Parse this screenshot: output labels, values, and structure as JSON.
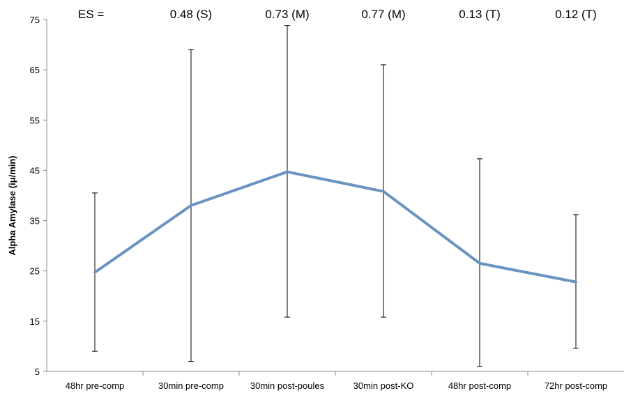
{
  "chart_data": {
    "type": "line",
    "ylabel": "Alpha Amylase (iμ/min)",
    "xlabel": "",
    "ylim": [
      5,
      75
    ],
    "yticks": [
      5,
      15,
      25,
      35,
      45,
      55,
      65,
      75
    ],
    "grid": false,
    "categories": [
      "48hr pre-comp",
      "30min pre-comp",
      "30min post-poules",
      "30min post-KO",
      "48hr post-comp",
      "72hr post-comp"
    ],
    "series": [
      {
        "values": [
          24.7,
          38.0,
          44.7,
          40.8,
          26.5,
          22.8
        ],
        "error_upper": [
          40.5,
          69.0,
          73.8,
          66.0,
          47.3,
          36.2
        ],
        "error_lower": [
          9.0,
          7.0,
          15.8,
          15.8,
          6.0,
          9.6
        ],
        "color": "#6a93c2"
      }
    ],
    "effect_size_prefix": "ES =",
    "effect_sizes": [
      "",
      "0.48 (S)",
      "0.73 (M)",
      "0.77 (M)",
      "0.13 (T)",
      "0.12 (T)"
    ]
  }
}
